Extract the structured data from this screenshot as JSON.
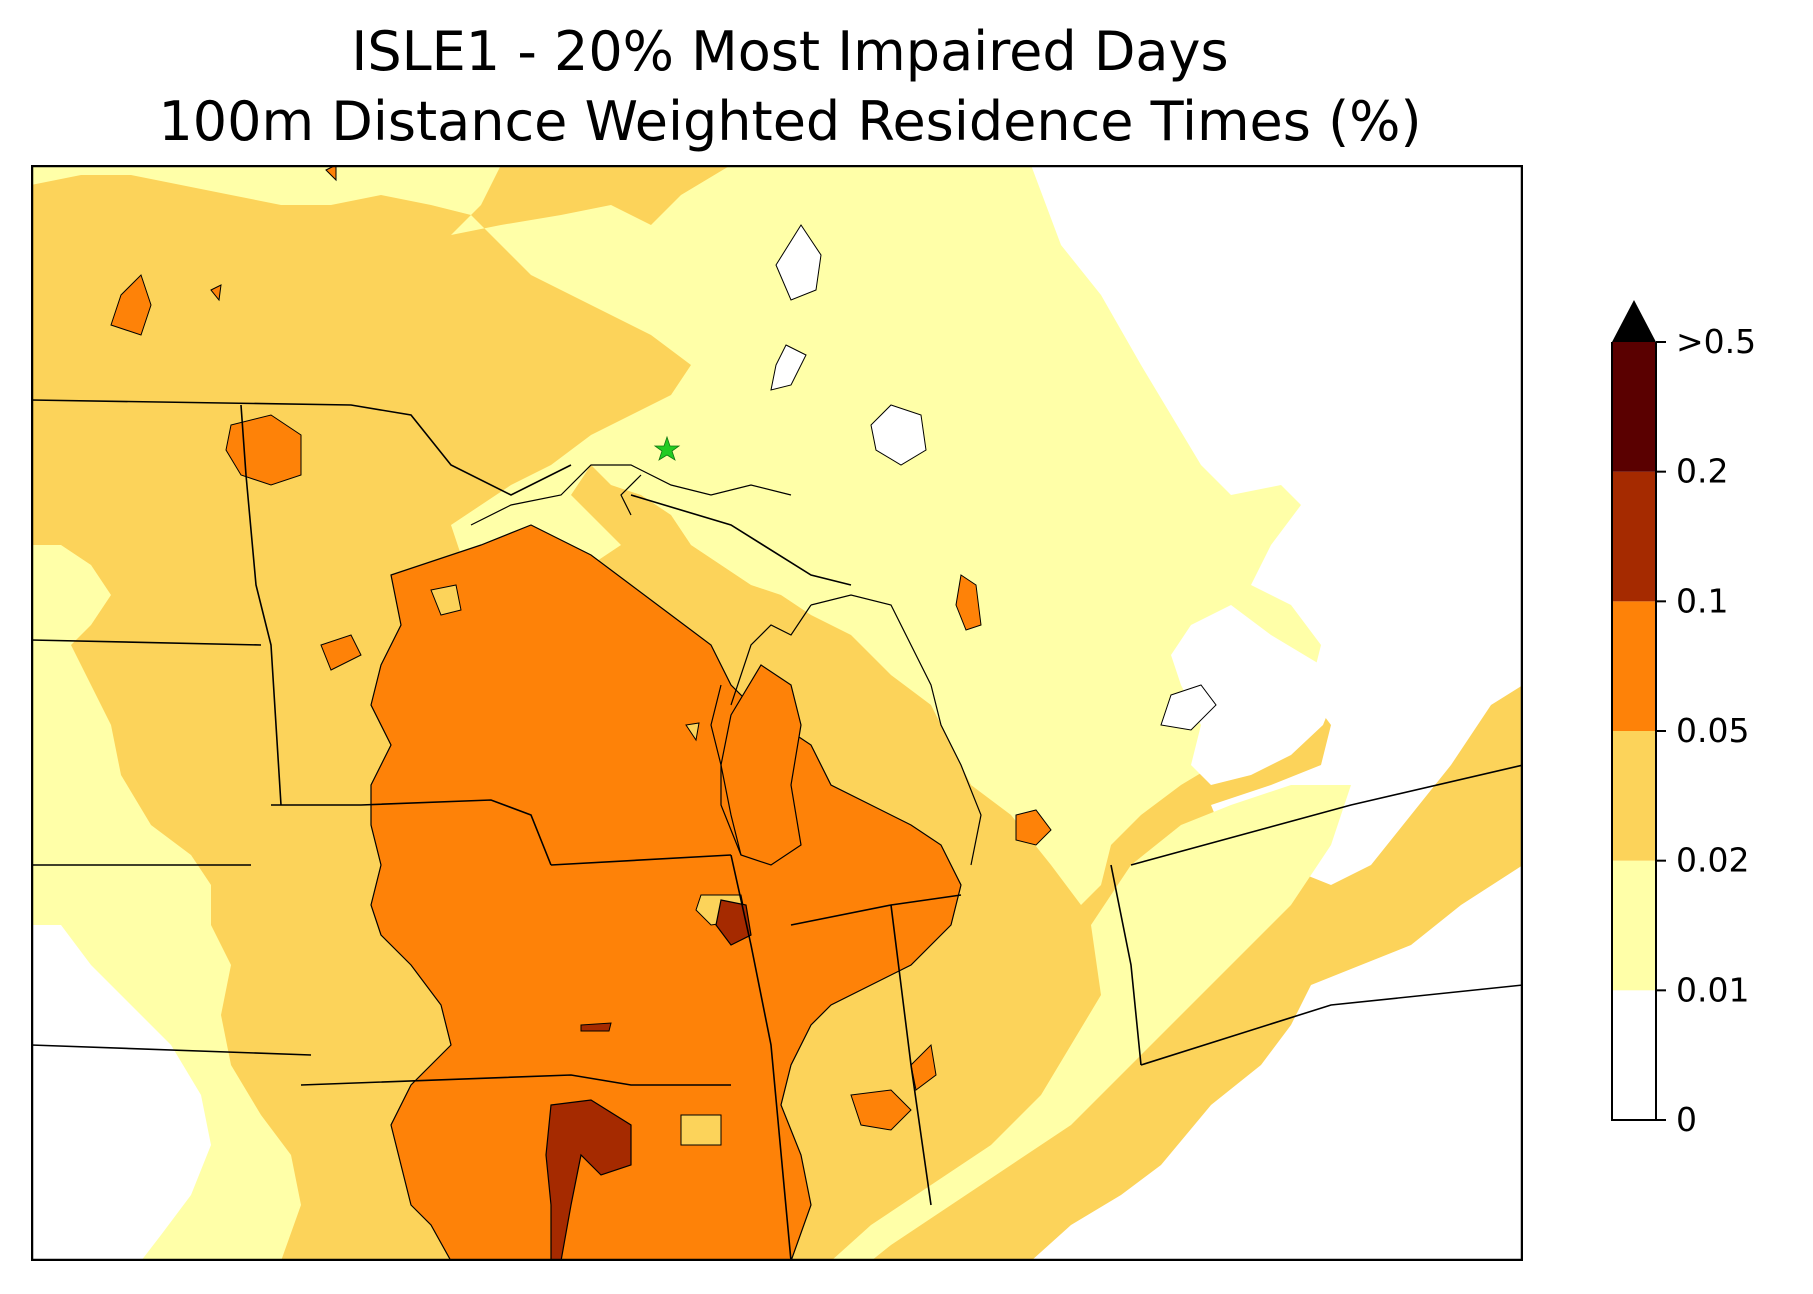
{
  "title": {
    "line1": "ISLE1 - 20% Most Impaired Days",
    "line2": "100m Distance Weighted Residence Times (%)"
  },
  "map": {
    "site_marker": "green-star",
    "site_marker_color": "#22cc22",
    "boundary_color": "#000000",
    "county_color": "#999999"
  },
  "colorbar": {
    "extend": "max",
    "levels": [
      {
        "label": "0",
        "color": "#ffffff"
      },
      {
        "label": "0.01",
        "color": "#ffffa8"
      },
      {
        "label": "0.02",
        "color": "#fcd35a"
      },
      {
        "label": "0.05",
        "color": "#fe8208"
      },
      {
        "label": "0.1",
        "color": "#a52a00"
      },
      {
        "label": "0.2",
        "color": "#5a0000"
      },
      {
        "label": ">0.5",
        "color": "#000000"
      }
    ]
  }
}
